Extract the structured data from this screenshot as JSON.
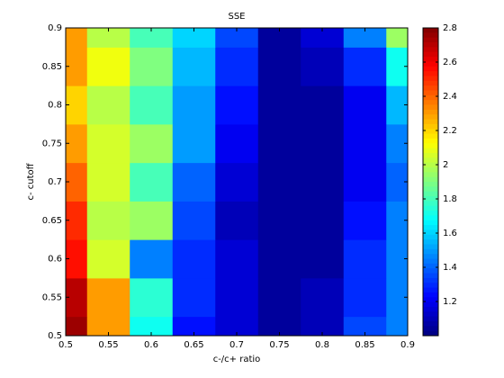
{
  "chart_data": {
    "type": "contour",
    "title": "SSE",
    "xlabel": "c-/c+ ratio",
    "ylabel": "c- cutoff",
    "colormap": "jet",
    "x": [
      0.5,
      0.55,
      0.6,
      0.65,
      0.7,
      0.75,
      0.8,
      0.85,
      0.9
    ],
    "y": [
      0.5,
      0.55,
      0.6,
      0.65,
      0.7,
      0.75,
      0.8,
      0.85,
      0.9
    ],
    "z": [
      [
        2.75,
        2.3,
        1.7,
        1.25,
        1.15,
        1.05,
        1.1,
        1.35,
        1.45
      ],
      [
        2.7,
        2.3,
        1.75,
        1.3,
        1.15,
        1.05,
        1.1,
        1.3,
        1.45
      ],
      [
        2.55,
        2.05,
        1.45,
        1.3,
        1.15,
        1.05,
        1.05,
        1.3,
        1.45
      ],
      [
        2.5,
        2.0,
        1.95,
        1.35,
        1.1,
        1.05,
        1.05,
        1.25,
        1.45
      ],
      [
        2.4,
        2.05,
        1.8,
        1.4,
        1.15,
        1.05,
        1.05,
        1.2,
        1.4
      ],
      [
        2.3,
        2.05,
        1.95,
        1.5,
        1.2,
        1.05,
        1.05,
        1.2,
        1.45
      ],
      [
        2.2,
        2.0,
        1.8,
        1.5,
        1.25,
        1.05,
        1.05,
        1.2,
        1.55
      ],
      [
        2.3,
        2.1,
        1.9,
        1.55,
        1.3,
        1.05,
        1.1,
        1.3,
        1.7
      ],
      [
        2.3,
        2.0,
        1.8,
        1.6,
        1.35,
        1.05,
        1.15,
        1.45,
        1.95
      ]
    ],
    "xlim": [
      0.5,
      0.9
    ],
    "ylim": [
      0.5,
      0.9
    ],
    "xticks": [
      0.5,
      0.55,
      0.6,
      0.65,
      0.7,
      0.75,
      0.8,
      0.85,
      0.9
    ],
    "yticks": [
      0.5,
      0.55,
      0.6,
      0.65,
      0.7,
      0.75,
      0.8,
      0.85,
      0.9
    ],
    "clim": [
      1.0,
      2.8
    ],
    "cticks": [
      1.2,
      1.4,
      1.6,
      1.8,
      2,
      2.2,
      2.4,
      2.6,
      2.8
    ]
  }
}
